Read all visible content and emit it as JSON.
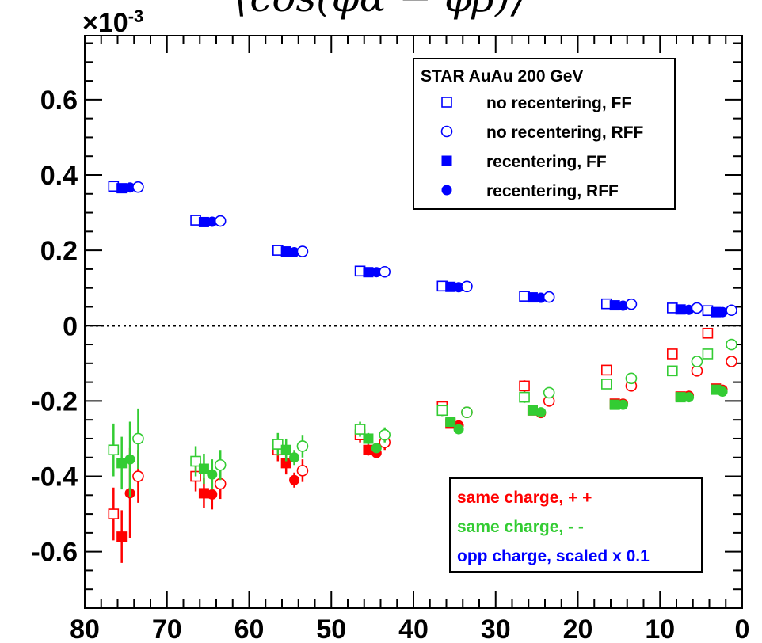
{
  "chart_data": {
    "type": "scatter",
    "title": "⟨cos(φα − φβ)⟩",
    "exponent_label": "×10",
    "exponent_power": "-3",
    "xlabel": "",
    "ylabel": "",
    "xlim": [
      80,
      0
    ],
    "ylim": [
      -0.75,
      0.77
    ],
    "x_ticks": [
      80,
      70,
      60,
      50,
      40,
      30,
      20,
      10,
      0
    ],
    "y_ticks": [
      -0.6,
      -0.4,
      -0.2,
      0,
      0.2,
      0.4,
      0.6
    ],
    "x_tick_labels": [
      "80",
      "70",
      "60",
      "50",
      "40",
      "30",
      "20",
      "10",
      "0"
    ],
    "y_tick_labels": [
      "-0.6",
      "-0.4",
      "-0.2",
      "0",
      "0.2",
      "0.4",
      "0.6"
    ],
    "zero_line": "dotted",
    "legend_markers": {
      "title": "STAR  AuAu 200 GeV",
      "placement": "top-right",
      "entries": [
        {
          "label": "no recentering, FF",
          "marker": "open-square"
        },
        {
          "label": "no recentering, RFF",
          "marker": "open-circle"
        },
        {
          "label": "recentering, FF",
          "marker": "filled-square"
        },
        {
          "label": "recentering, RFF",
          "marker": "filled-circle"
        }
      ]
    },
    "legend_colors": {
      "placement": "bottom-right",
      "entries": [
        {
          "label": "same charge, + +",
          "color": "#ff0000"
        },
        {
          "label": "same charge, - -",
          "color": "#33cc33"
        },
        {
          "label": "opp charge, scaled x 0.1",
          "color": "#0000ff"
        }
      ]
    },
    "series": [
      {
        "group": "opp charge",
        "variant": "no recentering, FF",
        "color": "#0000ff",
        "marker": "open-square",
        "points": [
          [
            76.5,
            0.37
          ],
          [
            66.5,
            0.28
          ],
          [
            56.5,
            0.2
          ],
          [
            46.5,
            0.145
          ],
          [
            36.5,
            0.105
          ],
          [
            26.5,
            0.078
          ],
          [
            16.5,
            0.058
          ],
          [
            8.5,
            0.047
          ],
          [
            4.2,
            0.04
          ]
        ]
      },
      {
        "group": "opp charge",
        "variant": "recentering, FF",
        "color": "#0000ff",
        "marker": "filled-square",
        "points": [
          [
            75.5,
            0.365
          ],
          [
            65.5,
            0.275
          ],
          [
            55.5,
            0.197
          ],
          [
            45.5,
            0.142
          ],
          [
            35.5,
            0.103
          ],
          [
            25.5,
            0.075
          ],
          [
            15.5,
            0.054
          ],
          [
            7.5,
            0.043
          ],
          [
            3.2,
            0.036
          ]
        ]
      },
      {
        "group": "opp charge",
        "variant": "recentering, RFF",
        "color": "#0000ff",
        "marker": "filled-circle",
        "points": [
          [
            74.5,
            0.367
          ],
          [
            64.5,
            0.276
          ],
          [
            54.5,
            0.195
          ],
          [
            44.5,
            0.142
          ],
          [
            34.5,
            0.102
          ],
          [
            24.5,
            0.074
          ],
          [
            14.5,
            0.053
          ],
          [
            6.5,
            0.042
          ],
          [
            2.4,
            0.036
          ]
        ]
      },
      {
        "group": "opp charge",
        "variant": "no recentering, RFF",
        "color": "#0000ff",
        "marker": "open-circle",
        "points": [
          [
            73.5,
            0.368
          ],
          [
            63.5,
            0.278
          ],
          [
            53.5,
            0.197
          ],
          [
            43.5,
            0.143
          ],
          [
            33.5,
            0.104
          ],
          [
            23.5,
            0.076
          ],
          [
            13.5,
            0.057
          ],
          [
            5.5,
            0.047
          ],
          [
            1.3,
            0.041
          ]
        ]
      },
      {
        "group": "same charge, + +",
        "variant": "no recentering, FF",
        "color": "#ff0000",
        "marker": "open-square",
        "points": [
          [
            76.5,
            -0.5,
            0.07
          ],
          [
            66.5,
            -0.4,
            0.04
          ],
          [
            56.5,
            -0.33,
            0.03
          ],
          [
            46.5,
            -0.29,
            0.02
          ],
          [
            36.5,
            -0.215,
            0.015
          ],
          [
            26.5,
            -0.16,
            0.015
          ],
          [
            16.5,
            -0.118,
            0.012
          ],
          [
            8.5,
            -0.075,
            0.01
          ],
          [
            4.2,
            -0.02,
            0.01
          ]
        ]
      },
      {
        "group": "same charge, + +",
        "variant": "recentering, FF",
        "color": "#ff0000",
        "marker": "filled-square",
        "points": [
          [
            75.5,
            -0.56,
            0.07
          ],
          [
            65.5,
            -0.445,
            0.04
          ],
          [
            55.5,
            -0.365,
            0.03
          ],
          [
            45.5,
            -0.33,
            0.015
          ],
          [
            35.5,
            -0.26,
            0.012
          ],
          [
            25.5,
            -0.225,
            0.01
          ],
          [
            15.5,
            -0.207,
            0.008
          ],
          [
            7.5,
            -0.188,
            0.008
          ],
          [
            3.2,
            -0.167,
            0.008
          ]
        ]
      },
      {
        "group": "same charge, + +",
        "variant": "recentering, RFF",
        "color": "#ff0000",
        "marker": "filled-circle",
        "points": [
          [
            74.5,
            -0.445,
            0.12
          ],
          [
            64.5,
            -0.448,
            0.04
          ],
          [
            54.5,
            -0.41,
            0.02
          ],
          [
            44.5,
            -0.338,
            0.012
          ],
          [
            34.5,
            -0.265,
            0.01
          ],
          [
            24.5,
            -0.232,
            0.008
          ],
          [
            14.5,
            -0.207,
            0.008
          ],
          [
            6.5,
            -0.186,
            0.007
          ],
          [
            2.4,
            -0.17,
            0.007
          ]
        ]
      },
      {
        "group": "same charge, + +",
        "variant": "no recentering, RFF",
        "color": "#ff0000",
        "marker": "open-circle",
        "points": [
          [
            73.5,
            -0.4,
            0.07
          ],
          [
            63.5,
            -0.42,
            0.04
          ],
          [
            53.5,
            -0.385,
            0.03
          ],
          [
            43.5,
            -0.31,
            0.02
          ],
          [
            33.5,
            -0.23,
            0.015
          ],
          [
            23.5,
            -0.2,
            0.012
          ],
          [
            13.5,
            -0.16,
            0.01
          ],
          [
            5.5,
            -0.12,
            0.01
          ],
          [
            1.3,
            -0.095,
            0.01
          ]
        ]
      },
      {
        "group": "same charge, - -",
        "variant": "no recentering, FF",
        "color": "#33cc33",
        "marker": "open-square",
        "points": [
          [
            76.5,
            -0.33,
            0.07
          ],
          [
            66.5,
            -0.36,
            0.04
          ],
          [
            56.5,
            -0.315,
            0.03
          ],
          [
            46.5,
            -0.275,
            0.02
          ],
          [
            36.5,
            -0.225,
            0.015
          ],
          [
            26.5,
            -0.19,
            0.015
          ],
          [
            16.5,
            -0.155,
            0.012
          ],
          [
            8.5,
            -0.12,
            0.01
          ],
          [
            4.2,
            -0.075,
            0.01
          ]
        ]
      },
      {
        "group": "same charge, - -",
        "variant": "recentering, FF",
        "color": "#33cc33",
        "marker": "filled-square",
        "points": [
          [
            75.5,
            -0.365,
            0.07
          ],
          [
            65.5,
            -0.38,
            0.04
          ],
          [
            55.5,
            -0.33,
            0.03
          ],
          [
            45.5,
            -0.3,
            0.015
          ],
          [
            35.5,
            -0.255,
            0.012
          ],
          [
            25.5,
            -0.225,
            0.01
          ],
          [
            15.5,
            -0.21,
            0.008
          ],
          [
            7.5,
            -0.19,
            0.008
          ],
          [
            3.2,
            -0.17,
            0.008
          ]
        ]
      },
      {
        "group": "same charge, - -",
        "variant": "recentering, RFF",
        "color": "#33cc33",
        "marker": "filled-circle",
        "points": [
          [
            74.5,
            -0.355,
            0.1
          ],
          [
            64.5,
            -0.395,
            0.04
          ],
          [
            54.5,
            -0.35,
            0.02
          ],
          [
            44.5,
            -0.325,
            0.012
          ],
          [
            34.5,
            -0.275,
            0.01
          ],
          [
            24.5,
            -0.23,
            0.008
          ],
          [
            14.5,
            -0.21,
            0.008
          ],
          [
            6.5,
            -0.19,
            0.007
          ],
          [
            2.4,
            -0.175,
            0.007
          ]
        ]
      },
      {
        "group": "same charge, - -",
        "variant": "no recentering, RFF",
        "color": "#33cc33",
        "marker": "open-circle",
        "points": [
          [
            73.5,
            -0.3,
            0.08
          ],
          [
            63.5,
            -0.37,
            0.04
          ],
          [
            53.5,
            -0.32,
            0.03
          ],
          [
            43.5,
            -0.29,
            0.02
          ],
          [
            33.5,
            -0.23,
            0.015
          ],
          [
            23.5,
            -0.178,
            0.012
          ],
          [
            13.5,
            -0.14,
            0.01
          ],
          [
            5.5,
            -0.095,
            0.01
          ],
          [
            1.3,
            -0.05,
            0.01
          ]
        ]
      }
    ]
  }
}
